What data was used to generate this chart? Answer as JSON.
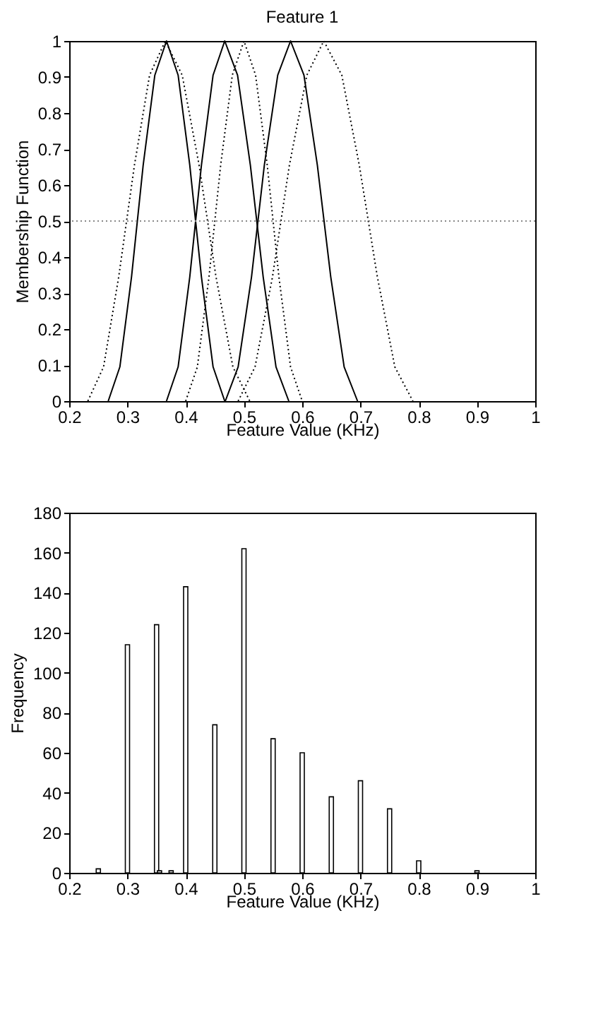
{
  "chart_data": [
    {
      "type": "line",
      "title": "Feature  1",
      "xlabel": "Feature Value (KHz)",
      "ylabel": "Membership Function",
      "xlim": [
        0.2,
        1
      ],
      "xticks": [
        0.2,
        0.3,
        0.4,
        0.5,
        0.6,
        0.7,
        0.8,
        0.9,
        1
      ],
      "ylim": [
        0,
        1
      ],
      "yticks": [
        0,
        0.1,
        0.2,
        0.3,
        0.4,
        0.5,
        0.6,
        0.7,
        0.8,
        0.9,
        1
      ],
      "grid": false,
      "legend": false,
      "series": [
        {
          "color": "#000000",
          "line_style": "solid",
          "x": [
            0.267,
            0.287,
            0.307,
            0.327,
            0.347,
            0.367,
            0.387,
            0.407,
            0.427,
            0.447,
            0.467
          ],
          "values": [
            0,
            0.095,
            0.345,
            0.655,
            0.905,
            1,
            0.905,
            0.655,
            0.345,
            0.095,
            0
          ]
        },
        {
          "color": "#000000",
          "line_style": "solid",
          "x": [
            0.367,
            0.387,
            0.407,
            0.427,
            0.447,
            0.467,
            0.489,
            0.511,
            0.533,
            0.555,
            0.577
          ],
          "values": [
            0,
            0.095,
            0.345,
            0.655,
            0.905,
            1,
            0.905,
            0.655,
            0.345,
            0.095,
            0
          ]
        },
        {
          "color": "#000000",
          "line_style": "solid",
          "x": [
            0.468,
            0.49,
            0.513,
            0.535,
            0.558,
            0.58,
            0.603,
            0.626,
            0.649,
            0.672,
            0.695
          ],
          "values": [
            0,
            0.095,
            0.345,
            0.655,
            0.905,
            1,
            0.905,
            0.655,
            0.345,
            0.095,
            0
          ]
        },
        {
          "color": "#000000",
          "line_style": "dotted",
          "x": [
            0.232,
            0.259,
            0.285,
            0.312,
            0.338,
            0.365,
            0.394,
            0.423,
            0.452,
            0.481,
            0.51
          ],
          "values": [
            0,
            0.095,
            0.345,
            0.655,
            0.905,
            1,
            0.905,
            0.655,
            0.345,
            0.095,
            0
          ]
        },
        {
          "color": "#000000",
          "line_style": "dotted",
          "x": [
            0.4,
            0.42,
            0.44,
            0.46,
            0.48,
            0.5,
            0.52,
            0.54,
            0.56,
            0.58,
            0.6
          ],
          "values": [
            0,
            0.095,
            0.345,
            0.655,
            0.905,
            1,
            0.905,
            0.655,
            0.345,
            0.095,
            0
          ]
        },
        {
          "color": "#000000",
          "line_style": "dotted",
          "x": [
            0.49,
            0.519,
            0.549,
            0.578,
            0.608,
            0.637,
            0.668,
            0.698,
            0.729,
            0.759,
            0.79
          ],
          "values": [
            0,
            0.095,
            0.345,
            0.655,
            0.905,
            1,
            0.905,
            0.655,
            0.345,
            0.095,
            0
          ]
        }
      ],
      "ref_lines": [
        {
          "axis": "y",
          "value": 0.5,
          "color": "#888888",
          "line_style": "dotted"
        }
      ]
    },
    {
      "type": "bar",
      "xlabel": "Feature Value (KHz)",
      "ylabel": "Frequency",
      "xlim": [
        0.2,
        1
      ],
      "xticks": [
        0.2,
        0.3,
        0.4,
        0.5,
        0.6,
        0.7,
        0.8,
        0.9,
        1
      ],
      "ylim": [
        0,
        180
      ],
      "yticks": [
        0,
        20,
        40,
        60,
        80,
        100,
        120,
        140,
        160,
        180
      ],
      "grid": false,
      "legend": false,
      "x": [
        0.25,
        0.3,
        0.35,
        0.355,
        0.375,
        0.4,
        0.45,
        0.5,
        0.55,
        0.6,
        0.65,
        0.7,
        0.75,
        0.8,
        0.9
      ],
      "values": [
        2,
        114,
        124,
        1,
        1,
        143,
        74,
        162,
        67,
        60,
        38,
        46,
        32,
        6,
        1
      ],
      "color": "#ffffff"
    }
  ]
}
